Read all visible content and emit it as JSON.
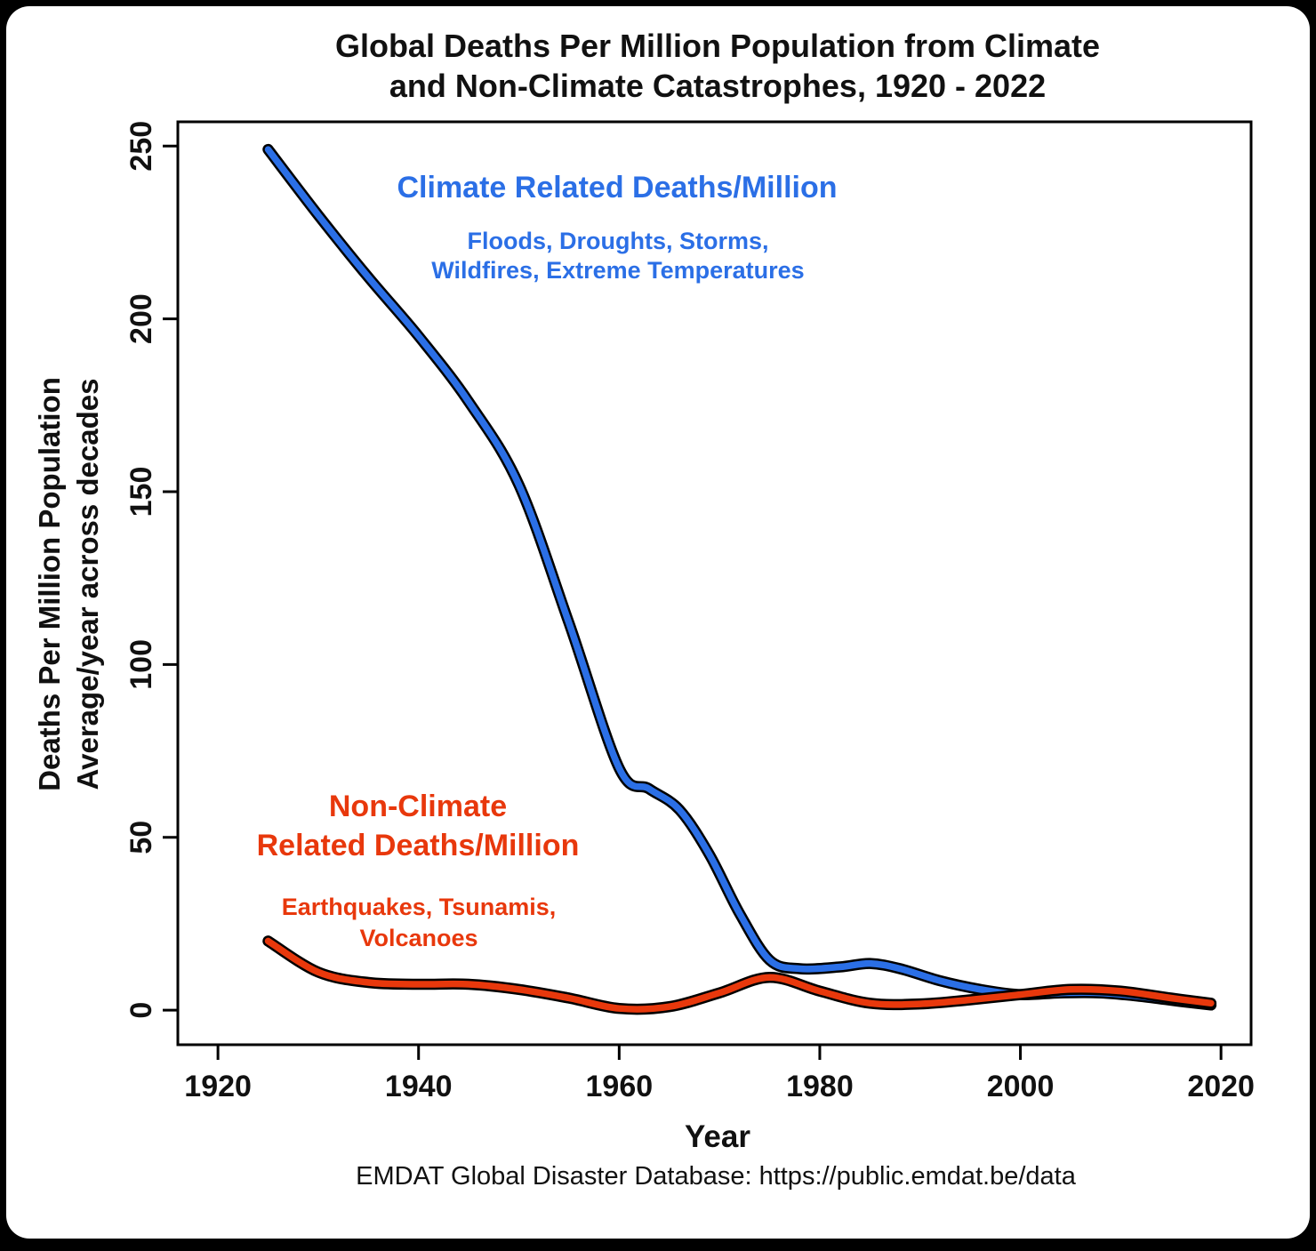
{
  "title": {
    "line1": "Global Deaths Per Million Population from Climate",
    "line2": "and Non-Climate Catastrophes, 1920 - 2022"
  },
  "footer": "EMDAT Global Disaster Database: https://public.emdat.be/data",
  "colors": {
    "climate": "#2b6fe6",
    "non_climate": "#e8380c",
    "outline": "#000000",
    "background": "#ffffff",
    "frame": "#000000"
  },
  "annotations": {
    "climate_title": "Climate Related Deaths/Million",
    "climate_sub1": "Floods, Droughts, Storms,",
    "climate_sub2": "Wildfires, Extreme Temperatures",
    "nonclimate_title1": "Non-Climate",
    "nonclimate_title2": "Related Deaths/Million",
    "nonclimate_sub1": "Earthquakes, Tsunamis,",
    "nonclimate_sub2": "Volcanoes"
  },
  "chart_data": {
    "type": "line",
    "title": "Global Deaths Per Million Population from Climate and Non-Climate Catastrophes, 1920 - 2022",
    "xlabel": "Year",
    "ylabel": "Deaths Per Million Population Average/year across decades",
    "ylabel_line1": "Deaths Per Million Population",
    "ylabel_line2": "Average/year across decades",
    "x_ticks": [
      1920,
      1940,
      1960,
      1980,
      2000,
      2020
    ],
    "y_ticks": [
      0,
      50,
      100,
      150,
      200,
      250
    ],
    "xlim": [
      1916,
      2023
    ],
    "ylim": [
      -10,
      257
    ],
    "grid": false,
    "legend": "inline-annotations",
    "series": [
      {
        "key": "climate",
        "name": "Climate Related Deaths/Million",
        "color": "#2b6fe6",
        "x": [
          1925,
          1930,
          1935,
          1940,
          1945,
          1950,
          1955,
          1960,
          1963,
          1966,
          1969,
          1972,
          1975,
          1978,
          1982,
          1985,
          1988,
          1992,
          1996,
          2000,
          2004,
          2008,
          2012,
          2016,
          2019
        ],
        "values": [
          249,
          230,
          212,
          195,
          176,
          152,
          112,
          70,
          64,
          58,
          45,
          28,
          14.5,
          12,
          12.5,
          13.5,
          12,
          8.5,
          6,
          4.5,
          5,
          5,
          4,
          2.5,
          1.5
        ]
      },
      {
        "key": "non-climate",
        "name": "Non-Climate Related Deaths/Million",
        "color": "#e8380c",
        "x": [
          1925,
          1930,
          1935,
          1940,
          1945,
          1950,
          1955,
          1960,
          1965,
          1970,
          1975,
          1980,
          1985,
          1990,
          1995,
          2000,
          2005,
          2010,
          2015,
          2019
        ],
        "values": [
          20,
          11,
          8,
          7.5,
          7.5,
          6,
          3.5,
          0.5,
          1,
          5,
          9.5,
          5.5,
          2,
          1.8,
          3,
          4.5,
          6,
          5.5,
          3.5,
          2
        ]
      }
    ]
  }
}
